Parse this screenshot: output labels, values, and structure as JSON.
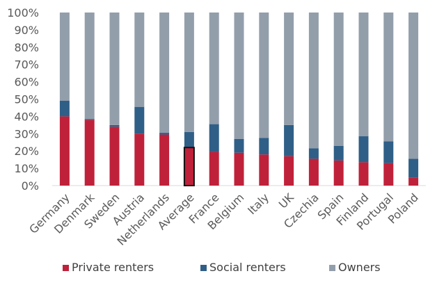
{
  "chart_data": {
    "type": "bar",
    "stacked": true,
    "orientation": "vertical",
    "categories": [
      "Germany",
      "Denmark",
      "Sweden",
      "Austria",
      "Netherlands",
      "Average",
      "France",
      "Belgium",
      "Italy",
      "UK",
      "Czechia",
      "Spain",
      "Finland",
      "Portugal",
      "Poland"
    ],
    "series": [
      {
        "name": "Private renters",
        "color": "#c0213a",
        "values": [
          40,
          38,
          34,
          30,
          29.5,
          22,
          19.5,
          19,
          18,
          17,
          15.5,
          14.5,
          13.5,
          13,
          4.5
        ]
      },
      {
        "name": "Social renters",
        "color": "#2f5f87",
        "values": [
          9,
          0.5,
          1,
          15.5,
          1,
          9,
          16,
          8,
          9.5,
          18,
          6,
          8.5,
          15,
          12.5,
          11
        ]
      },
      {
        "name": "Owners",
        "color": "#939eab",
        "values": [
          51,
          61.5,
          65,
          54.5,
          69.5,
          69,
          64.5,
          73,
          72.5,
          65,
          78.5,
          77,
          71.5,
          74.5,
          84.5
        ]
      }
    ],
    "highlight_category": "Average",
    "ylim": [
      0,
      100
    ],
    "y_ticks": [
      "0%",
      "10%",
      "20%",
      "30%",
      "40%",
      "50%",
      "60%",
      "70%",
      "80%",
      "90%",
      "100%"
    ],
    "legend_position": "bottom",
    "grid": false,
    "title": "",
    "xlabel": "",
    "ylabel": ""
  }
}
